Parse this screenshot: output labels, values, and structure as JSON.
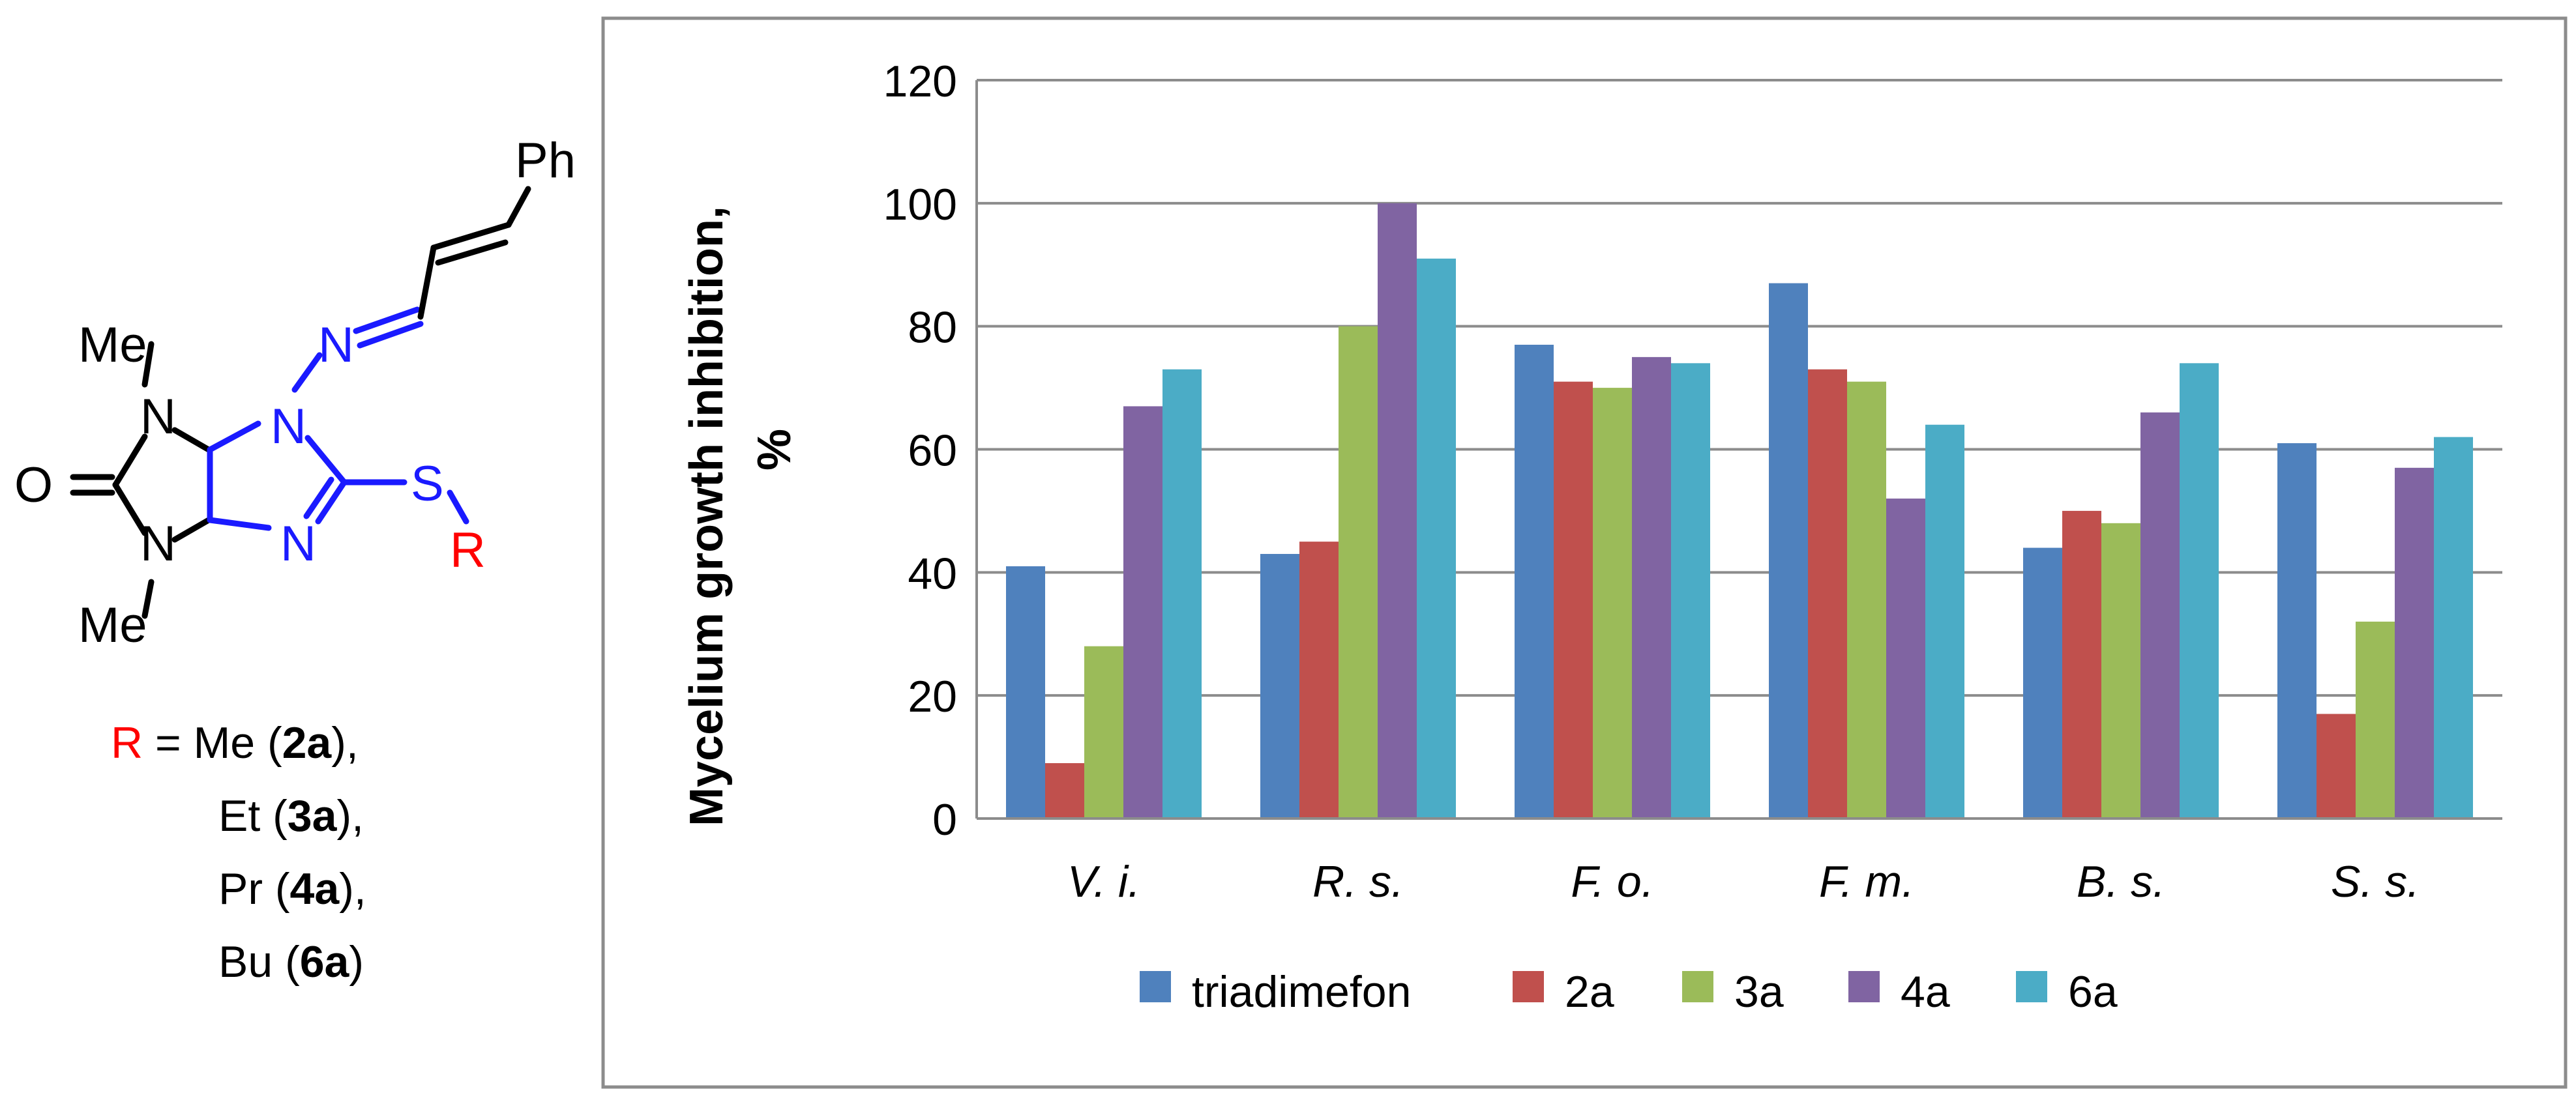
{
  "structure": {
    "atoms": {
      "ph": "Ph",
      "me_top": "Me",
      "me_bottom": "Me",
      "n_top": "N",
      "n_bottom": "N",
      "n_ring_top": "N",
      "n_ring_bottom": "N",
      "n_imine": "N",
      "o": "O",
      "s": "S",
      "r": "R"
    },
    "legend_lines": [
      {
        "prefix": "R",
        "text": " = Me (",
        "bold": "2a",
        "suffix": "),"
      },
      {
        "prefix": "",
        "text": "Et (",
        "bold": "3a",
        "suffix": "),"
      },
      {
        "prefix": "",
        "text": "Pr (",
        "bold": "4a",
        "suffix": "),"
      },
      {
        "prefix": "",
        "text": "Bu (",
        "bold": "6a",
        "suffix": ")"
      }
    ],
    "colors": {
      "ring": "#1a1aff",
      "r_group": "#ff0000",
      "bond": "#000000"
    }
  },
  "chart_data": {
    "type": "bar",
    "categories": [
      "V. i.",
      "R. s.",
      "F. o.",
      "F. m.",
      "B. s.",
      "S. s."
    ],
    "series": [
      {
        "name": "triadimefon",
        "color": "#4f81bd",
        "values": [
          41,
          43,
          77,
          87,
          44,
          61
        ]
      },
      {
        "name": "2a",
        "color": "#c0504d",
        "values": [
          9,
          45,
          71,
          73,
          50,
          17
        ]
      },
      {
        "name": "3a",
        "color": "#9bbb59",
        "values": [
          28,
          80,
          70,
          71,
          48,
          32
        ]
      },
      {
        "name": "4a",
        "color": "#8064a2",
        "values": [
          67,
          100,
          75,
          52,
          66,
          57
        ]
      },
      {
        "name": "6a",
        "color": "#4bacc6",
        "values": [
          73,
          91,
          74,
          64,
          74,
          62
        ]
      }
    ],
    "ylabel_line1": "Mycelium growth inhibition,",
    "ylabel_line2": "%",
    "ylim": [
      0,
      120
    ],
    "yticks": [
      "0",
      "20",
      "40",
      "60",
      "80",
      "100",
      "120"
    ],
    "grid": true,
    "legend_position": "bottom"
  }
}
